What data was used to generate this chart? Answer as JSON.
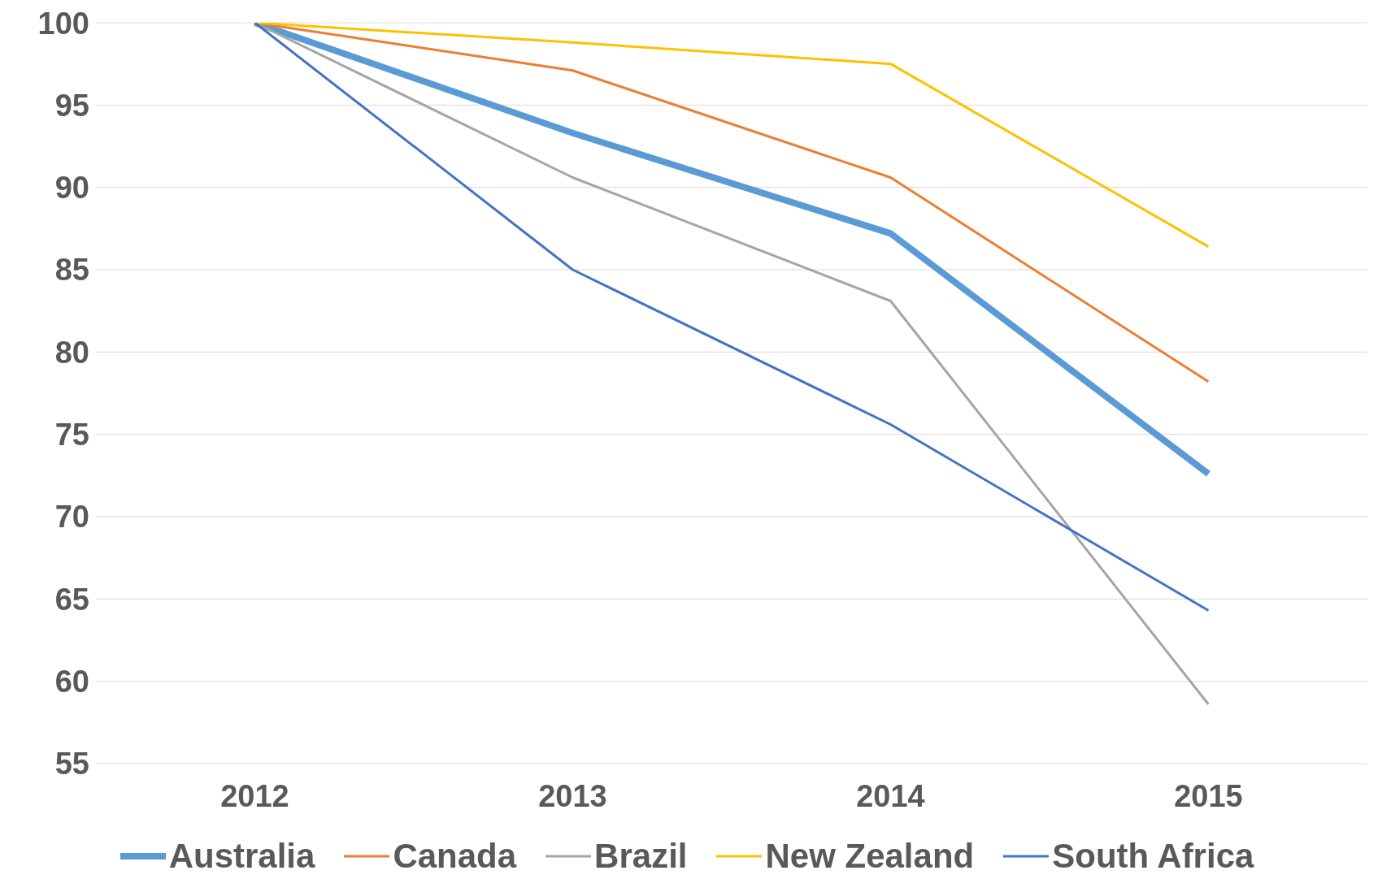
{
  "chart_data": {
    "type": "line",
    "categories": [
      "2012",
      "2013",
      "2014",
      "2015"
    ],
    "series": [
      {
        "name": "Australia",
        "color": "#5b9bd5",
        "values": [
          100,
          93.3,
          87.2,
          72.6
        ]
      },
      {
        "name": "Canada",
        "color": "#ed7d31",
        "values": [
          100,
          97.1,
          90.6,
          78.2
        ]
      },
      {
        "name": "Brazil",
        "color": "#a5a5a5",
        "values": [
          100,
          90.6,
          83.1,
          58.6
        ]
      },
      {
        "name": "New Zealand",
        "color": "#ffc000",
        "values": [
          100,
          98.8,
          97.5,
          86.4
        ]
      },
      {
        "name": "South Africa",
        "color": "#4472c4",
        "values": [
          100,
          85.0,
          75.6,
          64.3
        ]
      }
    ],
    "ylim": [
      55,
      100
    ],
    "yticks": [
      55,
      60,
      65,
      70,
      75,
      80,
      85,
      90,
      95,
      100
    ],
    "grid": "y",
    "legend": "bottom",
    "marker": "none",
    "line_style": "solid"
  }
}
